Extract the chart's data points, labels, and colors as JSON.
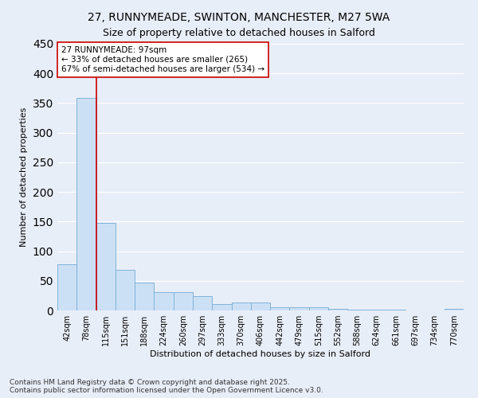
{
  "title_line1": "27, RUNNYMEADE, SWINTON, MANCHESTER, M27 5WA",
  "title_line2": "Size of property relative to detached houses in Salford",
  "xlabel": "Distribution of detached houses by size in Salford",
  "ylabel": "Number of detached properties",
  "categories": [
    "42sqm",
    "78sqm",
    "115sqm",
    "151sqm",
    "188sqm",
    "224sqm",
    "260sqm",
    "297sqm",
    "333sqm",
    "370sqm",
    "406sqm",
    "442sqm",
    "479sqm",
    "515sqm",
    "552sqm",
    "588sqm",
    "624sqm",
    "661sqm",
    "697sqm",
    "734sqm",
    "770sqm"
  ],
  "values": [
    78,
    358,
    148,
    69,
    47,
    31,
    31,
    24,
    11,
    14,
    14,
    6,
    6,
    6,
    3,
    1,
    1,
    1,
    0,
    0,
    3
  ],
  "bar_color": "#cce0f5",
  "bar_edge_color": "#7fb3d9",
  "ylim": [
    0,
    450
  ],
  "yticks": [
    0,
    50,
    100,
    150,
    200,
    250,
    300,
    350,
    400,
    450
  ],
  "vline_x": 1.5,
  "vline_color": "#cc0000",
  "annotation_text": "27 RUNNYMEADE: 97sqm\n← 33% of detached houses are smaller (265)\n67% of semi-detached houses are larger (534) →",
  "annotation_box_color": "#ffffff",
  "annotation_box_edgecolor": "#cc0000",
  "footer_text": "Contains HM Land Registry data © Crown copyright and database right 2025.\nContains public sector information licensed under the Open Government Licence v3.0.",
  "bg_color": "#e8eef8",
  "plot_bg_color": "#e8eef8",
  "grid_color": "#ffffff",
  "title_fontsize": 10,
  "axis_label_fontsize": 8,
  "tick_fontsize": 7,
  "annotation_fontsize": 7.5,
  "footer_fontsize": 6.5
}
